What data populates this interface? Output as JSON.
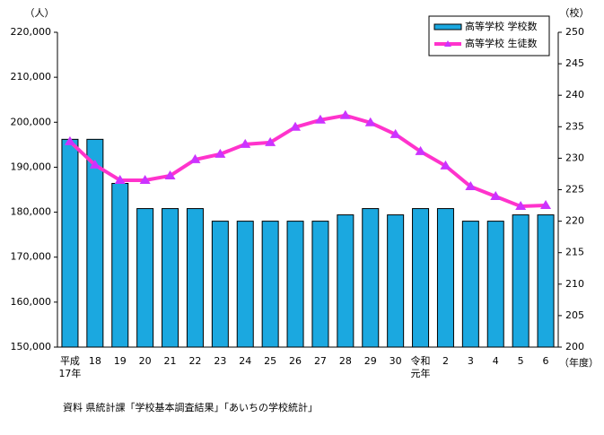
{
  "chart_data": {
    "type": "bar-line",
    "y_unit": "（人）",
    "y2_unit": "（校）",
    "x_unit": "（年度）",
    "source": "資料  県統計課「学校基本調査結果」「あいちの学校統計」",
    "categories": [
      "平成\n17年",
      "18",
      "19",
      "20",
      "21",
      "22",
      "23",
      "24",
      "25",
      "26",
      "27",
      "28",
      "29",
      "30",
      "令和\n元年",
      "2",
      "3",
      "4",
      "5",
      "6"
    ],
    "series": [
      {
        "name": "高等学校 学校数",
        "kind": "bar",
        "axis": "y2",
        "color": "#1ba8e0",
        "values": [
          233,
          233,
          226,
          222,
          222,
          222,
          220,
          220,
          220,
          220,
          220,
          221,
          222,
          221,
          222,
          222,
          220,
          220,
          221,
          221
        ]
      },
      {
        "name": "高等学校 生徒数",
        "kind": "line",
        "axis": "y",
        "color": "#ff33cc",
        "marker_color": "#cc33ff",
        "values": [
          195700,
          190500,
          187100,
          187100,
          188100,
          191700,
          192900,
          195100,
          195500,
          198900,
          200500,
          201500,
          199900,
          197300,
          193500,
          190300,
          185700,
          183500,
          181300,
          181500
        ]
      }
    ],
    "ylim": [
      150000,
      220000
    ],
    "yticks": [
      {
        "value": 150000,
        "label": "150,000"
      },
      {
        "value": 160000,
        "label": "160,000"
      },
      {
        "value": 170000,
        "label": "170,000"
      },
      {
        "value": 180000,
        "label": "180,000"
      },
      {
        "value": 190000,
        "label": "190,000"
      },
      {
        "value": 200000,
        "label": "200,000"
      },
      {
        "value": 210000,
        "label": "210,000"
      },
      {
        "value": 220000,
        "label": "220,000"
      }
    ],
    "y2lim": [
      200,
      250
    ],
    "y2ticks": [
      200,
      205,
      210,
      215,
      220,
      225,
      230,
      235,
      240,
      245,
      250
    ]
  }
}
